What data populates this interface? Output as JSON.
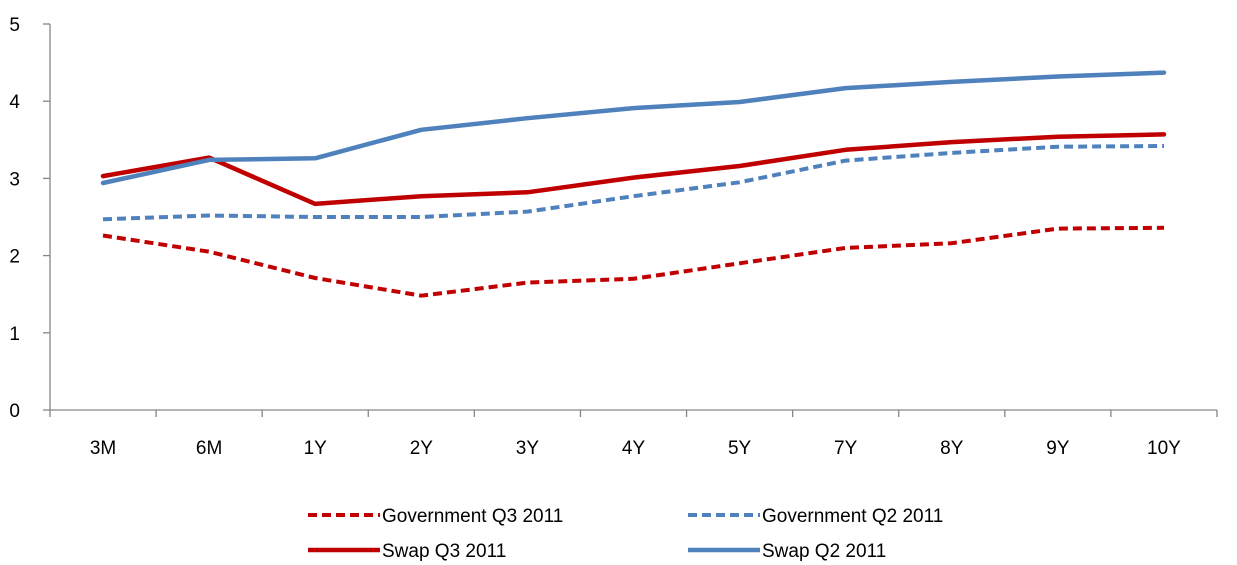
{
  "chart_data": {
    "type": "line",
    "title": "",
    "xlabel": "",
    "ylabel": "",
    "categories": [
      "3M",
      "6M",
      "1Y",
      "2Y",
      "3Y",
      "4Y",
      "5Y",
      "7Y",
      "8Y",
      "9Y",
      "10Y"
    ],
    "ylim": [
      0,
      5
    ],
    "yticks": [
      "0",
      "1",
      "2",
      "3",
      "4",
      "5"
    ],
    "grid": false,
    "legend_position": "bottom",
    "series": [
      {
        "name": "Government Q3 2011",
        "values": [
          2.26,
          2.05,
          1.71,
          1.48,
          1.65,
          1.7,
          1.9,
          2.1,
          2.16,
          2.35,
          2.36
        ],
        "color": "#C00000",
        "style": "dashed"
      },
      {
        "name": "Government Q2 2011",
        "values": [
          2.47,
          2.52,
          2.5,
          2.5,
          2.57,
          2.77,
          2.95,
          3.23,
          3.33,
          3.41,
          3.42
        ],
        "color": "#4F81BD",
        "style": "dashed"
      },
      {
        "name": "Swap Q3 2011",
        "values": [
          3.03,
          3.27,
          2.67,
          2.77,
          2.82,
          3.01,
          3.16,
          3.37,
          3.47,
          3.54,
          3.57
        ],
        "color": "#C00000",
        "style": "solid"
      },
      {
        "name": "Swap Q2 2011",
        "values": [
          2.94,
          3.24,
          3.26,
          3.63,
          3.78,
          3.91,
          3.99,
          4.17,
          4.25,
          4.32,
          4.37
        ],
        "color": "#4F81BD",
        "style": "solid"
      }
    ]
  }
}
